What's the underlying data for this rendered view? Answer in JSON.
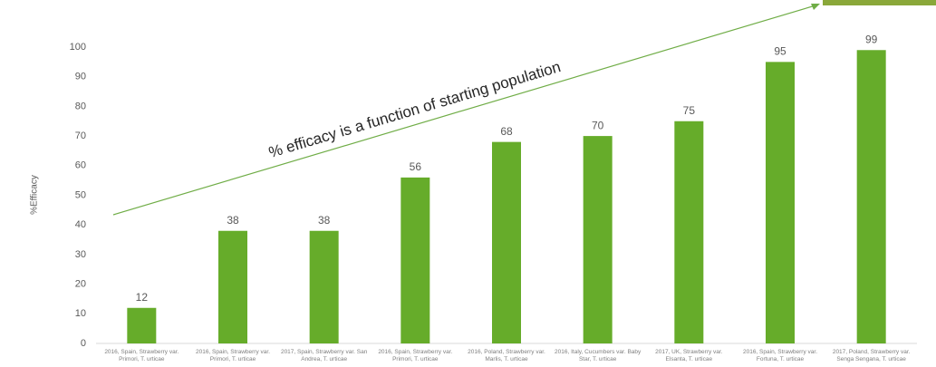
{
  "chart_data": {
    "type": "bar",
    "y_label": "%Efficacy",
    "annotation": "% efficacy is a function of starting population",
    "categories": [
      "2016, Spain, Strawberry var. Primori, T. urticae",
      "2016, Spain, Strawberry var. Primori, T. urticae",
      "2017, Spain, Strawberry var. San Andrea, T. urticae",
      "2016, Spain, Strawberry var. Primori, T. urticae",
      "2016, Poland, Strawberry var. Marlis, T. urticae",
      "2016, Italy, Cucumbers var. Baby Star, T. urticae",
      "2017, UK, Strawberry var. Elsanta, T. urticae",
      "2016, Spain, Strawberry var. Fortuna, T. urticae",
      "2017, Poland, Strawberry var. Senga Sengana, T. urticae"
    ],
    "values": [
      12,
      38,
      38,
      56,
      68,
      70,
      75,
      95,
      99
    ],
    "color": "#66ac2a",
    "ylim": [
      0,
      100
    ],
    "yticks": [
      0,
      10,
      20,
      30,
      40,
      50,
      60,
      70,
      80,
      90,
      100
    ]
  }
}
